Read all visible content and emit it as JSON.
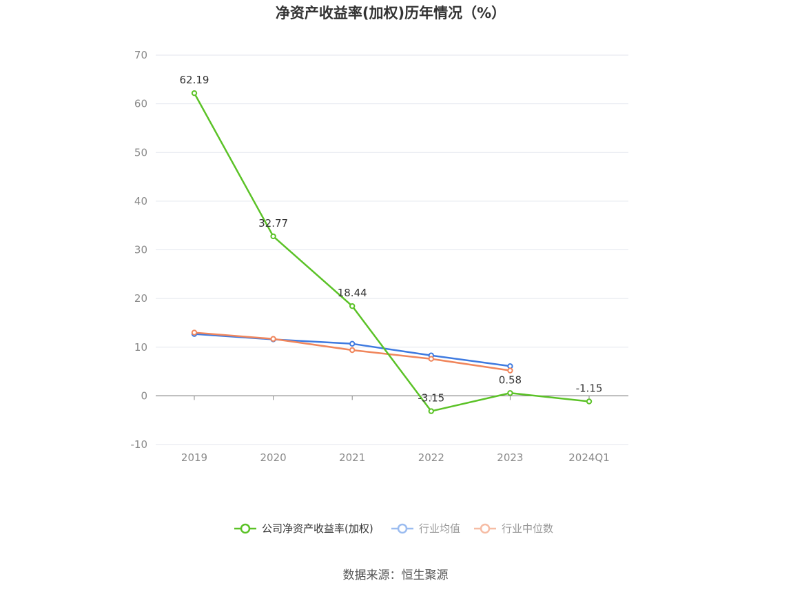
{
  "chart_data": {
    "type": "line",
    "title": "净资产收益率(加权)历年情况（%）",
    "categories": [
      "2019",
      "2020",
      "2021",
      "2022",
      "2023",
      "2024Q1"
    ],
    "ylim": [
      -10,
      70
    ],
    "yticks": [
      -10,
      0,
      10,
      20,
      30,
      40,
      50,
      60,
      70
    ],
    "grid": true,
    "legend_position": "bottom",
    "series": [
      {
        "name": "公司净资产收益率(加权)",
        "color": "#5bc227",
        "values": [
          62.19,
          32.77,
          18.44,
          -3.15,
          0.58,
          -1.15
        ],
        "labels": [
          "62.19",
          "32.77",
          "18.44",
          "-3.15",
          "0.58",
          "-1.15"
        ]
      },
      {
        "name": "行业均值",
        "color": "#3e7ae0",
        "values": [
          12.7,
          11.6,
          10.7,
          8.3,
          6.1,
          null
        ]
      },
      {
        "name": "行业中位数",
        "color": "#f0865c",
        "values": [
          13.0,
          11.7,
          9.4,
          7.6,
          5.2,
          null
        ]
      }
    ],
    "legend_text_colors": [
      "#333333",
      "#999999",
      "#999999"
    ],
    "legend_icon_colors": [
      "#5bc227",
      "#9bbcf0",
      "#f6bca4"
    ]
  },
  "source_text": "数据来源：恒生聚源"
}
